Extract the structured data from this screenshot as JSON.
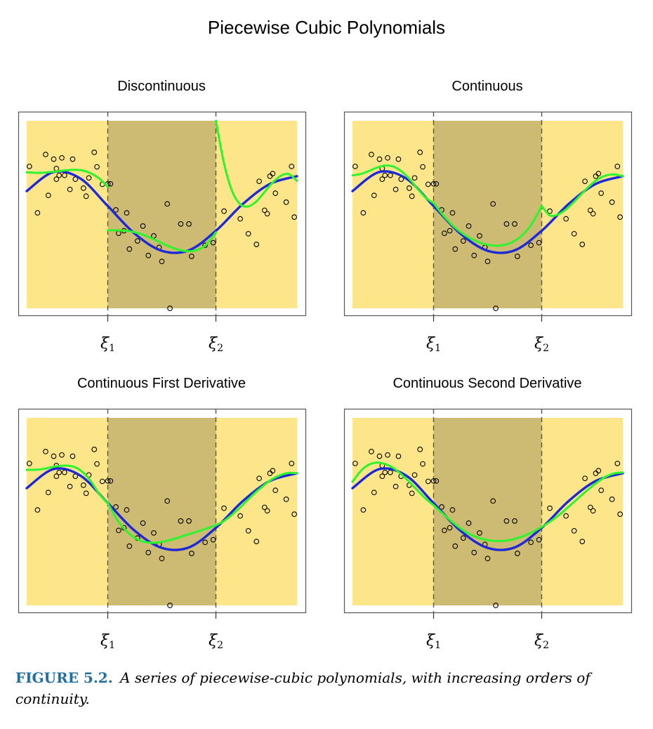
{
  "figure": {
    "title": "Piecewise Cubic Polynomials",
    "caption_lead": "FIGURE 5.2.",
    "caption_text": "A series of piecewise-cubic polynomials, with increasing orders of continuity."
  },
  "colors": {
    "outer_region": "#fde68a",
    "middle_region": "#cdbb73",
    "true_curve": "#1d28d8",
    "fit_curve": "#2cf52c",
    "points": "#000000",
    "knot_lines": "#555555"
  },
  "knot_labels": [
    "ξ",
    "ξ"
  ],
  "knot_subscripts": [
    "1",
    "2"
  ],
  "chart_data": [
    {
      "type": "scatter",
      "title": "Discontinuous",
      "xlim": [
        0,
        1
      ],
      "ylim": [
        -2.2,
        2.2
      ],
      "knots": [
        0.3,
        0.7
      ],
      "points_x": [
        0.01,
        0.04,
        0.07,
        0.08,
        0.1,
        0.11,
        0.11,
        0.12,
        0.13,
        0.14,
        0.16,
        0.17,
        0.18,
        0.21,
        0.22,
        0.23,
        0.25,
        0.26,
        0.28,
        0.3,
        0.31,
        0.33,
        0.34,
        0.36,
        0.37,
        0.38,
        0.41,
        0.43,
        0.45,
        0.47,
        0.49,
        0.5,
        0.52,
        0.53,
        0.57,
        0.6,
        0.61,
        0.66,
        0.69,
        0.73,
        0.79,
        0.82,
        0.85,
        0.86,
        0.88,
        0.89,
        0.9,
        0.91,
        0.92,
        0.96,
        0.98,
        0.99
      ],
      "points_y": [
        1.13,
        0.04,
        1.41,
        0.45,
        1.3,
        0.83,
        1.08,
        0.92,
        1.33,
        0.92,
        0.59,
        1.3,
        0.83,
        0.62,
        0.43,
        0.86,
        1.46,
        1.12,
        0.71,
        0.72,
        0.72,
        0.11,
        -0.44,
        -0.38,
        0.04,
        -0.81,
        -0.62,
        -0.27,
        -0.96,
        -0.5,
        -0.77,
        -1.1,
        0.25,
        -2.2,
        -0.22,
        -0.22,
        -0.98,
        -0.72,
        -0.66,
        0.08,
        -0.1,
        -0.45,
        -0.7,
        0.78,
        0.1,
        0.02,
        0.9,
        0.96,
        0.5,
        0.29,
        1.13,
        -0.06
      ],
      "series": [
        {
          "kind": "true",
          "x": [
            0,
            0.1,
            0.2,
            0.3,
            0.4,
            0.5,
            0.6,
            0.7,
            0.8,
            0.9,
            1.0
          ],
          "y": [
            0.55,
            1.0,
            0.84,
            0.2,
            -0.45,
            -0.85,
            -0.84,
            -0.38,
            0.25,
            0.72,
            0.9
          ]
        },
        {
          "kind": "fit",
          "x": [
            0,
            0.03,
            0.06,
            0.09,
            0.12,
            0.15,
            0.18,
            0.21,
            0.24,
            0.27,
            0.3
          ],
          "y": [
            0.99,
            0.98,
            0.98,
            1.0,
            1.02,
            1.04,
            1.05,
            1.03,
            0.96,
            0.84,
            0.65
          ]
        },
        {
          "kind": "fit",
          "x": [
            0.3,
            0.34,
            0.38,
            0.42,
            0.46,
            0.5,
            0.54,
            0.58,
            0.62,
            0.66,
            0.7
          ],
          "y": [
            -0.37,
            -0.37,
            -0.39,
            -0.45,
            -0.55,
            -0.67,
            -0.78,
            -0.85,
            -0.85,
            -0.73,
            -0.42
          ]
        },
        {
          "kind": "fit",
          "x": [
            0.7,
            0.73,
            0.76,
            0.79,
            0.82,
            0.85,
            0.88,
            0.91,
            0.94,
            0.97,
            1.0
          ],
          "y": [
            2.2,
            1.2,
            0.55,
            0.24,
            0.19,
            0.31,
            0.53,
            0.75,
            0.91,
            0.95,
            0.79
          ]
        }
      ]
    },
    {
      "type": "scatter",
      "title": "Continuous",
      "xlim": [
        0,
        1
      ],
      "ylim": [
        -2.2,
        2.2
      ],
      "knots": [
        0.3,
        0.7
      ],
      "points_x": [
        0.01,
        0.04,
        0.07,
        0.08,
        0.1,
        0.11,
        0.11,
        0.12,
        0.13,
        0.14,
        0.16,
        0.17,
        0.18,
        0.21,
        0.22,
        0.23,
        0.25,
        0.26,
        0.28,
        0.3,
        0.31,
        0.33,
        0.34,
        0.36,
        0.37,
        0.38,
        0.41,
        0.43,
        0.45,
        0.47,
        0.49,
        0.5,
        0.52,
        0.53,
        0.57,
        0.6,
        0.61,
        0.66,
        0.69,
        0.73,
        0.79,
        0.82,
        0.85,
        0.86,
        0.88,
        0.89,
        0.9,
        0.91,
        0.92,
        0.96,
        0.98,
        0.99
      ],
      "points_y": [
        1.13,
        0.04,
        1.41,
        0.45,
        1.3,
        0.83,
        1.08,
        0.92,
        1.33,
        0.92,
        0.59,
        1.3,
        0.83,
        0.62,
        0.43,
        0.86,
        1.46,
        1.12,
        0.71,
        0.72,
        0.72,
        0.11,
        -0.44,
        -0.38,
        0.04,
        -0.81,
        -0.62,
        -0.27,
        -0.96,
        -0.5,
        -0.77,
        -1.1,
        0.25,
        -2.2,
        -0.22,
        -0.22,
        -0.98,
        -0.72,
        -0.66,
        0.08,
        -0.1,
        -0.45,
        -0.7,
        0.78,
        0.1,
        0.02,
        0.9,
        0.96,
        0.5,
        0.29,
        1.13,
        -0.06
      ],
      "series": [
        {
          "kind": "true",
          "x": [
            0,
            0.1,
            0.2,
            0.3,
            0.4,
            0.5,
            0.6,
            0.7,
            0.8,
            0.9,
            1.0
          ],
          "y": [
            0.55,
            1.0,
            0.84,
            0.2,
            -0.45,
            -0.85,
            -0.84,
            -0.38,
            0.25,
            0.72,
            0.9
          ]
        },
        {
          "kind": "fit",
          "x": [
            0,
            0.03,
            0.06,
            0.09,
            0.12,
            0.15,
            0.18,
            0.21,
            0.24,
            0.27,
            0.3
          ],
          "y": [
            0.92,
            0.95,
            1.02,
            1.1,
            1.15,
            1.13,
            1.02,
            0.84,
            0.61,
            0.4,
            0.27
          ]
        },
        {
          "kind": "fit",
          "x": [
            0.3,
            0.34,
            0.38,
            0.42,
            0.46,
            0.5,
            0.54,
            0.58,
            0.62,
            0.66,
            0.7
          ],
          "y": [
            0.27,
            -0.05,
            -0.31,
            -0.5,
            -0.63,
            -0.71,
            -0.73,
            -0.68,
            -0.53,
            -0.25,
            0.2
          ]
        },
        {
          "kind": "fit",
          "x": [
            0.7,
            0.73,
            0.76,
            0.79,
            0.82,
            0.85,
            0.88,
            0.91,
            0.94,
            0.97,
            1.0
          ],
          "y": [
            0.2,
            -0.02,
            0.0,
            0.12,
            0.3,
            0.5,
            0.69,
            0.84,
            0.92,
            0.94,
            0.9
          ]
        }
      ]
    },
    {
      "type": "scatter",
      "title": "Continuous First Derivative",
      "xlim": [
        0,
        1
      ],
      "ylim": [
        -2.2,
        2.2
      ],
      "knots": [
        0.3,
        0.7
      ],
      "points_x": [
        0.01,
        0.04,
        0.07,
        0.08,
        0.1,
        0.11,
        0.11,
        0.12,
        0.13,
        0.14,
        0.16,
        0.17,
        0.18,
        0.21,
        0.22,
        0.23,
        0.25,
        0.26,
        0.28,
        0.3,
        0.31,
        0.33,
        0.34,
        0.36,
        0.37,
        0.38,
        0.41,
        0.43,
        0.45,
        0.47,
        0.49,
        0.5,
        0.52,
        0.53,
        0.57,
        0.6,
        0.61,
        0.66,
        0.69,
        0.73,
        0.79,
        0.82,
        0.85,
        0.86,
        0.88,
        0.89,
        0.9,
        0.91,
        0.92,
        0.96,
        0.98,
        0.99
      ],
      "points_y": [
        1.13,
        0.04,
        1.41,
        0.45,
        1.3,
        0.83,
        1.08,
        0.92,
        1.33,
        0.92,
        0.59,
        1.3,
        0.83,
        0.62,
        0.43,
        0.86,
        1.46,
        1.12,
        0.71,
        0.72,
        0.72,
        0.11,
        -0.44,
        -0.38,
        0.04,
        -0.81,
        -0.62,
        -0.27,
        -0.96,
        -0.5,
        -0.77,
        -1.1,
        0.25,
        -2.2,
        -0.22,
        -0.22,
        -0.98,
        -0.72,
        -0.66,
        0.08,
        -0.1,
        -0.45,
        -0.7,
        0.78,
        0.1,
        0.02,
        0.9,
        0.96,
        0.5,
        0.29,
        1.13,
        -0.06
      ],
      "series": [
        {
          "kind": "true",
          "x": [
            0,
            0.1,
            0.2,
            0.3,
            0.4,
            0.5,
            0.6,
            0.7,
            0.8,
            0.9,
            1.0
          ],
          "y": [
            0.55,
            1.0,
            0.84,
            0.2,
            -0.45,
            -0.85,
            -0.84,
            -0.38,
            0.25,
            0.72,
            0.9
          ]
        },
        {
          "kind": "fit",
          "x": [
            0,
            0.03,
            0.06,
            0.09,
            0.12,
            0.15,
            0.18,
            0.21,
            0.24,
            0.27,
            0.3
          ],
          "y": [
            0.98,
            0.98,
            1.0,
            1.04,
            1.07,
            1.08,
            1.04,
            0.91,
            0.69,
            0.4,
            0.2
          ]
        },
        {
          "kind": "fit",
          "x": [
            0.3,
            0.34,
            0.38,
            0.42,
            0.46,
            0.5,
            0.54,
            0.58,
            0.62,
            0.66,
            0.7
          ],
          "y": [
            0.2,
            -0.24,
            -0.52,
            -0.68,
            -0.73,
            -0.71,
            -0.65,
            -0.57,
            -0.49,
            -0.41,
            -0.32
          ]
        },
        {
          "kind": "fit",
          "x": [
            0.7,
            0.73,
            0.76,
            0.79,
            0.82,
            0.85,
            0.88,
            0.91,
            0.94,
            0.97,
            1.0
          ],
          "y": [
            -0.32,
            -0.22,
            -0.07,
            0.1,
            0.29,
            0.47,
            0.63,
            0.77,
            0.86,
            0.91,
            0.9
          ]
        }
      ]
    },
    {
      "type": "scatter",
      "title": "Continuous Second Derivative",
      "xlim": [
        0,
        1
      ],
      "ylim": [
        -2.2,
        2.2
      ],
      "knots": [
        0.3,
        0.7
      ],
      "points_x": [
        0.01,
        0.04,
        0.07,
        0.08,
        0.1,
        0.11,
        0.11,
        0.12,
        0.13,
        0.14,
        0.16,
        0.17,
        0.18,
        0.21,
        0.22,
        0.23,
        0.25,
        0.26,
        0.28,
        0.3,
        0.31,
        0.33,
        0.34,
        0.36,
        0.37,
        0.38,
        0.41,
        0.43,
        0.45,
        0.47,
        0.49,
        0.5,
        0.52,
        0.53,
        0.57,
        0.6,
        0.61,
        0.66,
        0.69,
        0.73,
        0.79,
        0.82,
        0.85,
        0.86,
        0.88,
        0.89,
        0.9,
        0.91,
        0.92,
        0.96,
        0.98,
        0.99
      ],
      "points_y": [
        1.13,
        0.04,
        1.41,
        0.45,
        1.3,
        0.83,
        1.08,
        0.92,
        1.33,
        0.92,
        0.59,
        1.3,
        0.83,
        0.62,
        0.43,
        0.86,
        1.46,
        1.12,
        0.71,
        0.72,
        0.72,
        0.11,
        -0.44,
        -0.38,
        0.04,
        -0.81,
        -0.62,
        -0.27,
        -0.96,
        -0.5,
        -0.77,
        -1.1,
        0.25,
        -2.2,
        -0.22,
        -0.22,
        -0.98,
        -0.72,
        -0.66,
        0.08,
        -0.1,
        -0.45,
        -0.7,
        0.78,
        0.1,
        0.02,
        0.9,
        0.96,
        0.5,
        0.29,
        1.13,
        -0.06
      ],
      "series": [
        {
          "kind": "true",
          "x": [
            0,
            0.1,
            0.2,
            0.3,
            0.4,
            0.5,
            0.6,
            0.7,
            0.8,
            0.9,
            1.0
          ],
          "y": [
            0.55,
            1.0,
            0.84,
            0.2,
            -0.45,
            -0.85,
            -0.84,
            -0.38,
            0.25,
            0.72,
            0.9
          ]
        },
        {
          "kind": "fit",
          "x": [
            0,
            0.03,
            0.06,
            0.09,
            0.12,
            0.15,
            0.18,
            0.21,
            0.24,
            0.27,
            0.3
          ],
          "y": [
            0.7,
            0.95,
            1.1,
            1.15,
            1.12,
            1.03,
            0.88,
            0.7,
            0.5,
            0.31,
            0.15
          ]
        },
        {
          "kind": "fit",
          "x": [
            0.3,
            0.34,
            0.38,
            0.42,
            0.46,
            0.5,
            0.54,
            0.58,
            0.62,
            0.66,
            0.7
          ],
          "y": [
            0.15,
            -0.08,
            -0.3,
            -0.48,
            -0.6,
            -0.67,
            -0.69,
            -0.67,
            -0.6,
            -0.5,
            -0.36
          ]
        },
        {
          "kind": "fit",
          "x": [
            0.7,
            0.73,
            0.76,
            0.79,
            0.82,
            0.85,
            0.88,
            0.91,
            0.94,
            0.97,
            1.0
          ],
          "y": [
            -0.36,
            -0.24,
            -0.1,
            0.06,
            0.23,
            0.4,
            0.56,
            0.71,
            0.83,
            0.9,
            0.92
          ]
        }
      ]
    }
  ]
}
